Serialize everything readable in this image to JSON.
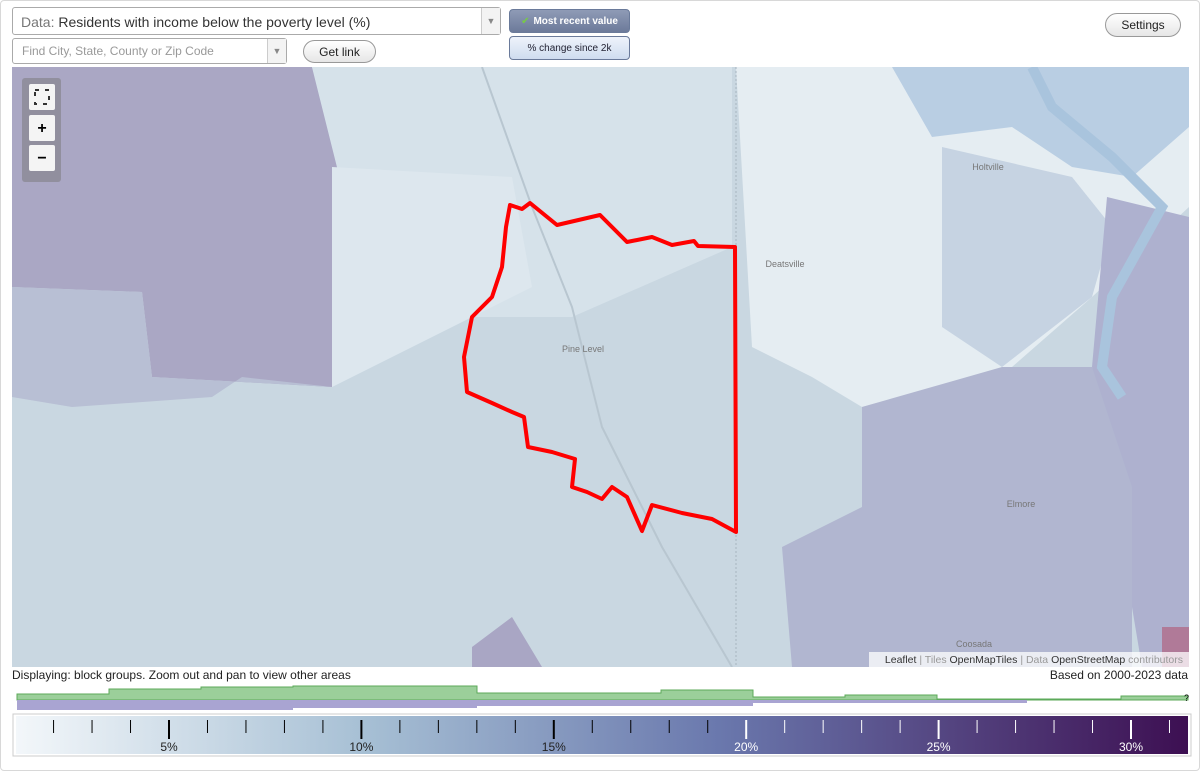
{
  "data_select": {
    "prefix": "Data:",
    "value": "Residents with income below the poverty level (%)"
  },
  "search": {
    "placeholder": "Find City, State, County or Zip Code"
  },
  "buttons": {
    "get_link": "Get link",
    "most_recent": "Most recent value",
    "change": "% change since 2k",
    "settings": "Settings"
  },
  "map": {
    "places": [
      "Holtville",
      "Deatsville",
      "Pine Level",
      "Elmore",
      "Coosada"
    ],
    "attribution": {
      "leaflet": "Leaflet",
      "tiles": "Tiles",
      "tiles_source": "OpenMapTiles",
      "data": "Data",
      "data_source": "OpenStreetMap",
      "contributors": "contributors"
    }
  },
  "status": {
    "displaying": "Displaying: block groups. Zoom out and pan to view other areas",
    "based_on": "Based on 2000-2023 data",
    "help": "?"
  },
  "legend": {
    "labels": [
      "5%",
      "10%",
      "15%",
      "20%",
      "25%",
      "30%"
    ]
  }
}
